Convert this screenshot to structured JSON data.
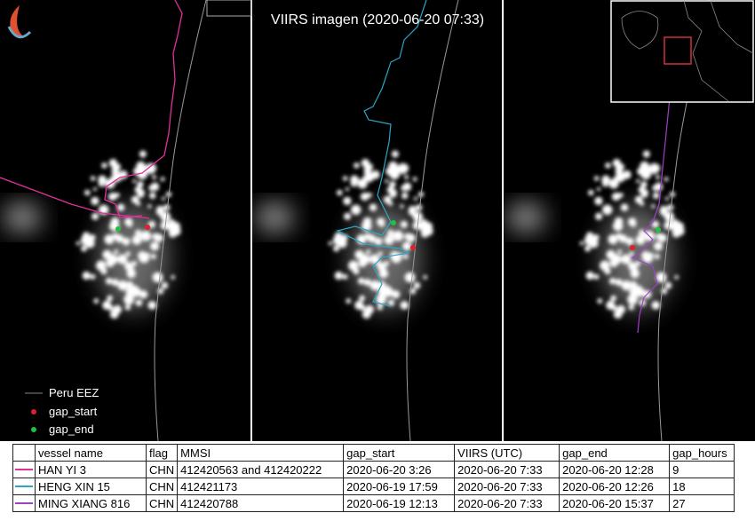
{
  "title": "VIIRS imagen (2020-06-20 07:33)",
  "legend": {
    "items": [
      "Peru EEZ",
      "gap_start",
      "gap_end"
    ]
  },
  "table": {
    "header": [
      "vessel name",
      "flag",
      "MMSI",
      "gap_start",
      "VIIRS (UTC)",
      "gap_end",
      "gap_hours"
    ],
    "rows": [
      [
        "HAN YI 3",
        "CHN",
        "412420563 and 412420222",
        "2020-06-20 3:26",
        "2020-06-20 7:33",
        "2020-06-20 12:28",
        "9"
      ],
      [
        "HENG XIN 15",
        "CHN",
        "412421173",
        "2020-06-19 17:59",
        "2020-06-20 7:33",
        "2020-06-20 12:26",
        "18"
      ],
      [
        "MING XIANG 816",
        "CHN",
        "412420788",
        "2020-06-19 12:13",
        "2020-06-20 7:33",
        "2020-06-20 15:37",
        "27"
      ]
    ]
  }
}
